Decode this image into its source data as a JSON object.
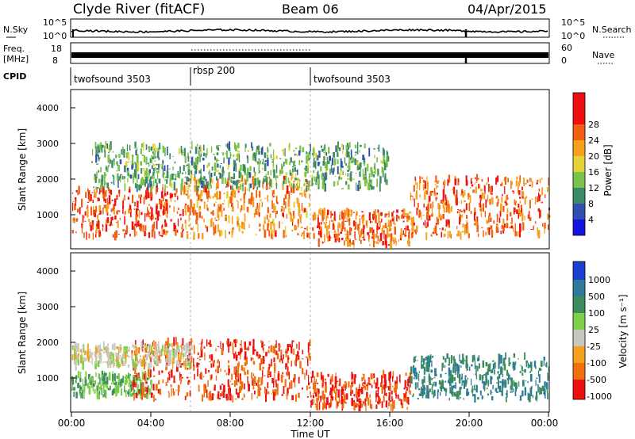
{
  "header": {
    "station": "Clyde River (fitACF)",
    "beam": "Beam 06",
    "date": "04/Apr/2015"
  },
  "noise_panel": {
    "left_label": "N.Sky",
    "right_label": "N.Search",
    "left_ticks": [
      "10^5",
      "10^0"
    ],
    "right_ticks": [
      "10^5",
      "10^0"
    ]
  },
  "freq_panel": {
    "left_label_line1": "Freq.",
    "left_label_line2": "[MHz]",
    "right_label": "Nave",
    "left_ticks": [
      "18",
      "8"
    ],
    "right_ticks": [
      "60",
      "0"
    ]
  },
  "cpid": {
    "label": "CPID",
    "segments": [
      {
        "name": "twofsound 3503",
        "start_hour": 0,
        "end_hour": 6
      },
      {
        "name": "rbsp 200",
        "start_hour": 6,
        "end_hour": 12
      },
      {
        "name": "twofsound 3503",
        "start_hour": 12,
        "end_hour": 24
      }
    ]
  },
  "x_axis": {
    "label": "Time UT",
    "range_hours": [
      0,
      24
    ],
    "tick_labels": [
      "00:00",
      "04:00",
      "08:00",
      "12:00",
      "16:00",
      "20:00",
      "00:00"
    ]
  },
  "power_panel": {
    "ylabel": "Slant Range [km]",
    "yticks": [
      "1000",
      "2000",
      "3000",
      "4000"
    ],
    "colorbar_label": "Power [dB]",
    "colorbar_ticks": [
      "4",
      "8",
      "12",
      "16",
      "20",
      "24",
      "28"
    ]
  },
  "velocity_panel": {
    "ylabel": "Slant Range [km]",
    "yticks": [
      "1000",
      "2000",
      "3000",
      "4000"
    ],
    "colorbar_label": "Velocity [m s⁻¹]",
    "colorbar_ticks": [
      "1000",
      "500",
      "100",
      "25",
      "-25",
      "-100",
      "-500",
      "-1000"
    ]
  },
  "chart_data": [
    {
      "type": "heatmap",
      "title": "Power",
      "xlabel": "Time UT",
      "ylabel": "Slant Range [km]",
      "x_range_hours": [
        0,
        24
      ],
      "y_range_km": [
        180,
        4500
      ],
      "colorbar_range_db": [
        0,
        32
      ],
      "colors": [
        "#1515e0",
        "#3050b0",
        "#3a8a68",
        "#7cc34a",
        "#e6d23a",
        "#f7a020",
        "#f06010",
        "#ee1010"
      ],
      "echo_regions": [
        {
          "hours": [
            0,
            5.5
          ],
          "range_km": [
            500,
            1800
          ],
          "dominant_db": 28
        },
        {
          "hours": [
            5.5,
            12
          ],
          "range_km": [
            500,
            2100
          ],
          "dominant_db": 24
        },
        {
          "hours": [
            12,
            17
          ],
          "range_km": [
            250,
            1200
          ],
          "dominant_db": 26
        },
        {
          "hours": [
            17,
            24
          ],
          "range_km": [
            500,
            2100
          ],
          "dominant_db": 26
        },
        {
          "hours": [
            1,
            16
          ],
          "range_km": [
            1800,
            3000
          ],
          "dominant_db": 12
        }
      ]
    },
    {
      "type": "heatmap",
      "title": "Velocity",
      "xlabel": "Time UT",
      "ylabel": "Slant Range [km]",
      "x_range_hours": [
        0,
        24
      ],
      "y_range_km": [
        180,
        4500
      ],
      "colorbar_values": [
        1000,
        500,
        100,
        25,
        -25,
        -100,
        -500,
        -1000
      ],
      "colors": [
        "#1a3fd0",
        "#2e7a9a",
        "#3b8c5a",
        "#7ed04a",
        "#c8c8c0",
        "#f7a020",
        "#f07010",
        "#ee1010"
      ],
      "echo_regions": [
        {
          "hours": [
            0,
            4
          ],
          "range_km": [
            600,
            1200
          ],
          "dominant_velocity": 100
        },
        {
          "hours": [
            3,
            12
          ],
          "range_km": [
            500,
            2100
          ],
          "dominant_velocity": -500
        },
        {
          "hours": [
            12,
            17
          ],
          "range_km": [
            250,
            1200
          ],
          "dominant_velocity": -500
        },
        {
          "hours": [
            17,
            24
          ],
          "range_km": [
            500,
            1700
          ],
          "dominant_velocity": 500
        },
        {
          "hours": [
            0,
            6
          ],
          "range_km": [
            1400,
            2000
          ],
          "dominant_velocity": 0
        }
      ]
    }
  ]
}
